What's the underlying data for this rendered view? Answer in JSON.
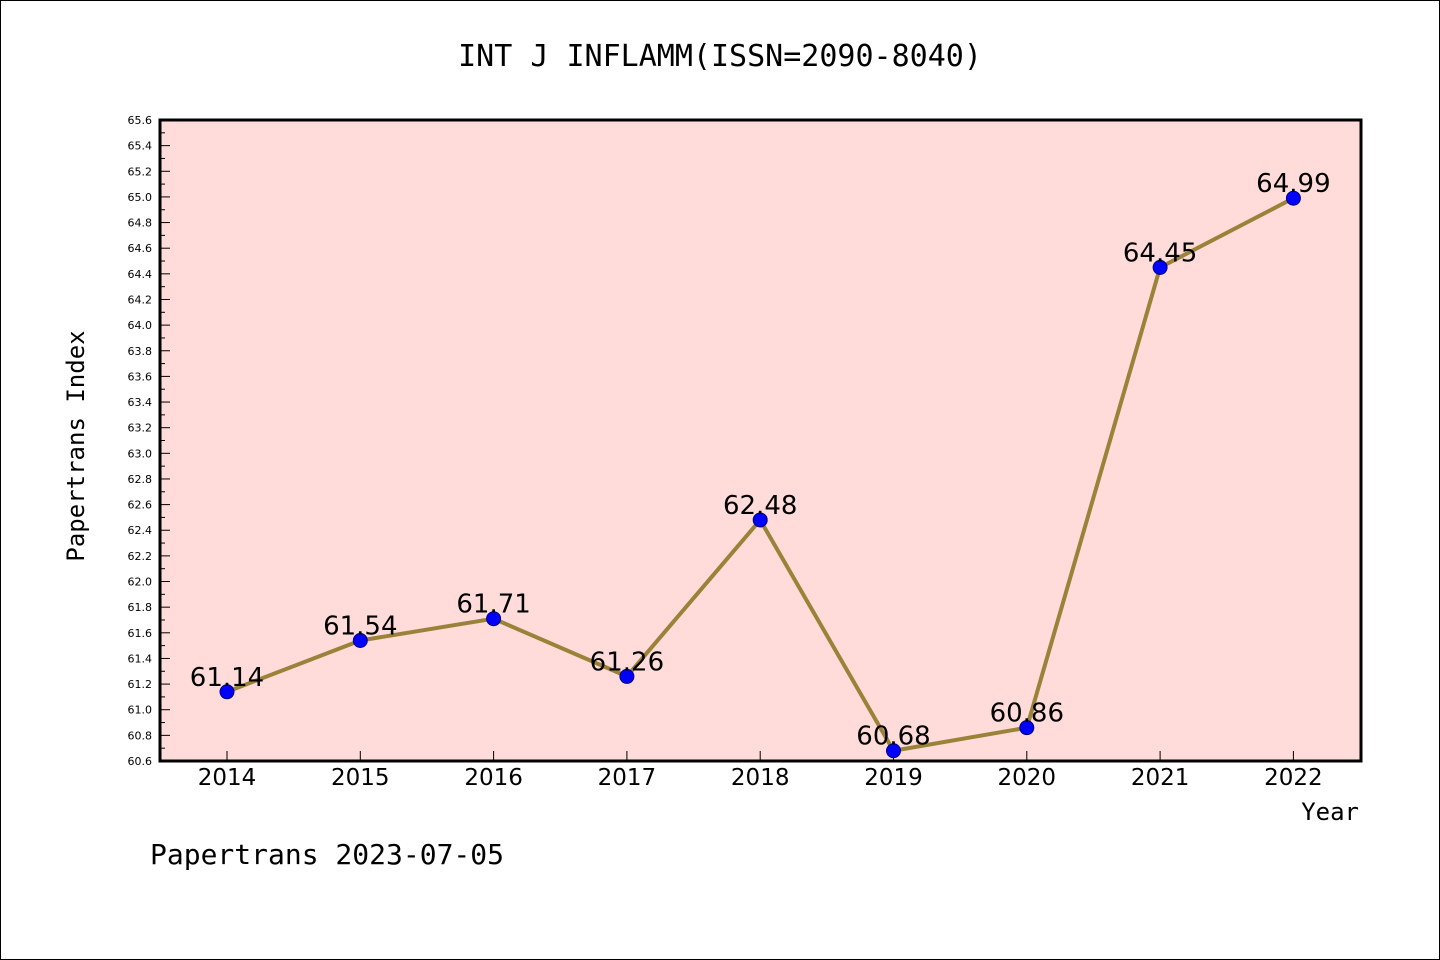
{
  "footer": "Papertrans 2023-07-05",
  "colors": {
    "plot_background": "#ffdcd9",
    "line": "#9a8339",
    "marker": "#0000ff"
  },
  "chart_data": {
    "type": "line",
    "title": "INT J INFLAMM(ISSN=2090-8040)",
    "xlabel": "Year",
    "ylabel": "Papertrans Index",
    "categories": [
      "2014",
      "2015",
      "2016",
      "2017",
      "2018",
      "2019",
      "2020",
      "2021",
      "2022"
    ],
    "values": [
      61.14,
      61.54,
      61.71,
      61.26,
      62.48,
      60.68,
      60.86,
      64.45,
      64.99
    ],
    "data_labels": [
      "61.14",
      "61.54",
      "61.71",
      "61.26",
      "62.48",
      "60.68",
      "60.86",
      "64.45",
      "64.99"
    ],
    "ylim": [
      60.6,
      65.6
    ],
    "yticks": [
      "60.6",
      "60.8",
      "61.0",
      "61.2",
      "61.4",
      "61.6",
      "61.8",
      "62.0",
      "62.2",
      "62.4",
      "62.6",
      "62.8",
      "63.0",
      "63.2",
      "63.4",
      "63.6",
      "63.8",
      "64.0",
      "64.2",
      "64.4",
      "64.6",
      "64.8",
      "65.0",
      "65.2",
      "65.4",
      "65.6"
    ],
    "grid": false,
    "legend": "none"
  }
}
